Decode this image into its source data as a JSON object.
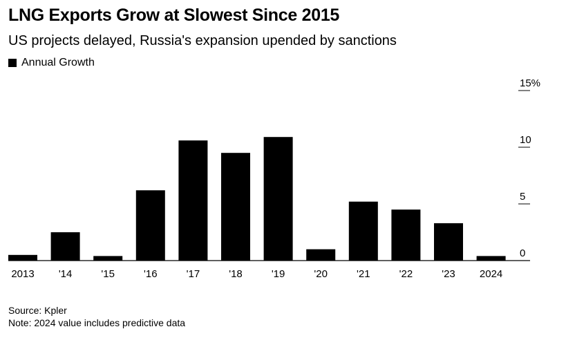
{
  "title": "LNG Exports Grow at Slowest Since 2015",
  "subtitle": "US projects delayed, Russia's expansion upended by sanctions",
  "legend": {
    "label": "Annual Growth",
    "color": "#000000"
  },
  "source": "Source: Kpler",
  "note": "Note: 2024 value includes predictive data",
  "chart_data": {
    "type": "bar",
    "categories": [
      "2013",
      "'14",
      "'15",
      "'16",
      "'17",
      "'18",
      "'19",
      "'20",
      "'21",
      "'22",
      "'23",
      "2024"
    ],
    "series": [
      {
        "name": "Annual Growth",
        "color": "#000000",
        "values": [
          0.5,
          2.5,
          0.4,
          6.2,
          10.6,
          9.5,
          10.9,
          1.0,
          5.2,
          4.5,
          3.3,
          0.4
        ]
      }
    ],
    "ylim": [
      0,
      15
    ],
    "yticks": [
      0,
      5,
      10,
      15
    ],
    "ytick_labels": [
      "0",
      "5",
      "10",
      "15%"
    ],
    "y_axis_side": "right",
    "grid": false,
    "legend_position": "top-left"
  }
}
